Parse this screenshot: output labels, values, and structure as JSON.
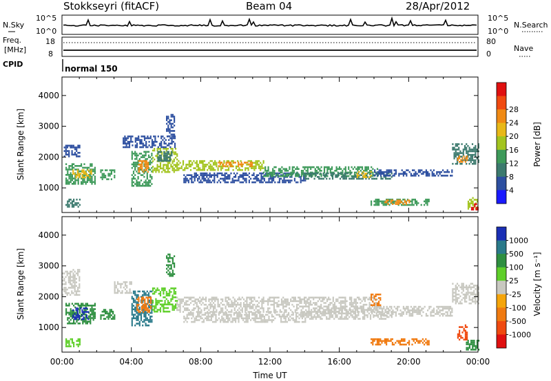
{
  "header": {
    "station": "Stokkseyri (fitACF)",
    "beam": "Beam 04",
    "date": "28/Apr/2012"
  },
  "panels": {
    "nsky": {
      "left_label": "N.Sky",
      "right_label": "N.Search",
      "left_ticks": [
        "10^5",
        "10^0"
      ],
      "right_ticks": [
        "10^5",
        "10^0"
      ]
    },
    "freq": {
      "left_label_1": "Freq.",
      "left_label_2": "[MHz]",
      "right_label": "Nave",
      "left_ticks": [
        "18",
        "8"
      ],
      "right_ticks": [
        "80",
        "0"
      ]
    },
    "cpid": {
      "label": "CPID",
      "mode": "normal 150"
    }
  },
  "chart_data": [
    {
      "type": "heatmap",
      "name": "power",
      "ylabel": "Slant Range [km]",
      "ylim": [
        200,
        4600
      ],
      "yticks": [
        "1000",
        "2000",
        "3000",
        "4000"
      ],
      "xlim": [
        0,
        24
      ],
      "colorbar": {
        "label": "Power [dB]",
        "ticks": [
          "4",
          "8",
          "12",
          "16",
          "20",
          "24",
          "28"
        ],
        "colors": [
          "#1a1aff",
          "#2d4fa0",
          "#3c7a6e",
          "#3e9a5a",
          "#a3c41f",
          "#e8b818",
          "#f08a14",
          "#f04a10",
          "#e01010"
        ]
      },
      "echo_regions": [
        {
          "t": [
            0.1,
            1.0
          ],
          "r": [
            2050,
            2400
          ],
          "level": 1
        },
        {
          "t": [
            0.2,
            1.9
          ],
          "r": [
            1150,
            1800
          ],
          "level": 3
        },
        {
          "t": [
            0.6,
            1.7
          ],
          "r": [
            1350,
            1600
          ],
          "level": 5
        },
        {
          "t": [
            2.2,
            3.0
          ],
          "r": [
            1300,
            1600
          ],
          "level": 3
        },
        {
          "t": [
            4.0,
            5.2
          ],
          "r": [
            1050,
            2200
          ],
          "level": 3
        },
        {
          "t": [
            4.4,
            5.0
          ],
          "r": [
            1500,
            1900
          ],
          "level": 6
        },
        {
          "t": [
            5.2,
            6.6
          ],
          "r": [
            1500,
            2300
          ],
          "level": 4
        },
        {
          "t": [
            5.5,
            6.3
          ],
          "r": [
            1900,
            2200
          ],
          "level": 2
        },
        {
          "t": [
            6.6,
            11.6
          ],
          "r": [
            1600,
            1900
          ],
          "level": 4
        },
        {
          "t": [
            9.0,
            11.0
          ],
          "r": [
            1700,
            1850
          ],
          "level": 6
        },
        {
          "t": [
            7.0,
            14.0
          ],
          "r": [
            1200,
            1500
          ],
          "level": 1
        },
        {
          "t": [
            11.6,
            18.2
          ],
          "r": [
            1400,
            1700
          ],
          "level": 3
        },
        {
          "t": [
            14.0,
            19.0
          ],
          "r": [
            1300,
            1500
          ],
          "level": 2
        },
        {
          "t": [
            17.0,
            17.8
          ],
          "r": [
            1350,
            1550
          ],
          "level": 5
        },
        {
          "t": [
            18.0,
            22.5
          ],
          "r": [
            1400,
            1600
          ],
          "level": 1
        },
        {
          "t": [
            17.8,
            21.2
          ],
          "r": [
            450,
            650
          ],
          "level": 3
        },
        {
          "t": [
            18.6,
            20.0
          ],
          "r": [
            480,
            620
          ],
          "level": 6
        },
        {
          "t": [
            22.5,
            24.0
          ],
          "r": [
            1800,
            2450
          ],
          "level": 2
        },
        {
          "t": [
            22.8,
            23.4
          ],
          "r": [
            1850,
            2050
          ],
          "level": 6
        },
        {
          "t": [
            23.4,
            24.0
          ],
          "r": [
            300,
            700
          ],
          "level": 4
        },
        {
          "t": [
            23.6,
            23.95
          ],
          "r": [
            300,
            500
          ],
          "level": 8
        },
        {
          "t": [
            0.2,
            1.0
          ],
          "r": [
            400,
            650
          ],
          "level": 2
        },
        {
          "t": [
            3.5,
            6.5
          ],
          "r": [
            2300,
            2700
          ],
          "level": 1
        },
        {
          "t": [
            6.0,
            6.5
          ],
          "r": [
            2700,
            3400
          ],
          "level": 1
        }
      ]
    },
    {
      "type": "heatmap",
      "name": "velocity",
      "ylabel": "Slant Range [km]",
      "ylim": [
        200,
        4600
      ],
      "yticks": [
        "1000",
        "2000",
        "3000",
        "4000"
      ],
      "xlim": [
        0,
        24
      ],
      "xticks": [
        "00:00",
        "04:00",
        "08:00",
        "12:00",
        "16:00",
        "20:00",
        "00:00"
      ],
      "xlabel": "Time UT",
      "colorbar": {
        "label": "Velocity [m s⁻¹]",
        "ticks": [
          "1000",
          "500",
          "100",
          "25",
          "-25",
          "-100",
          "-500",
          "-1000"
        ],
        "colors": [
          "#1a2fb5",
          "#2a7a8a",
          "#2e8f40",
          "#5fcf2a",
          "#c8c8c0",
          "#f5a50a",
          "#f07a10",
          "#f04a10",
          "#e01010"
        ]
      },
      "echo_regions": [
        {
          "t": [
            0.0,
            1.0
          ],
          "r": [
            2050,
            2900
          ],
          "level": 4
        },
        {
          "t": [
            0.2,
            1.9
          ],
          "r": [
            1150,
            1800
          ],
          "level": 2
        },
        {
          "t": [
            0.6,
            1.5
          ],
          "r": [
            1300,
            1650
          ],
          "level": 0
        },
        {
          "t": [
            2.2,
            3.0
          ],
          "r": [
            1300,
            1600
          ],
          "level": 2
        },
        {
          "t": [
            4.0,
            5.2
          ],
          "r": [
            1050,
            2200
          ],
          "level": 1
        },
        {
          "t": [
            4.3,
            5.1
          ],
          "r": [
            1500,
            2000
          ],
          "level": 6
        },
        {
          "t": [
            5.2,
            6.6
          ],
          "r": [
            1500,
            2300
          ],
          "level": 3
        },
        {
          "t": [
            3.0,
            4.0
          ],
          "r": [
            2100,
            2500
          ],
          "level": 4
        },
        {
          "t": [
            6.6,
            18.2
          ],
          "r": [
            1500,
            2000
          ],
          "level": 4
        },
        {
          "t": [
            7.0,
            14.0
          ],
          "r": [
            1200,
            1500
          ],
          "level": 4
        },
        {
          "t": [
            14.0,
            19.0
          ],
          "r": [
            1300,
            1600
          ],
          "level": 4
        },
        {
          "t": [
            18.0,
            22.5
          ],
          "r": [
            1400,
            1700
          ],
          "level": 4
        },
        {
          "t": [
            22.5,
            24.0
          ],
          "r": [
            1800,
            2450
          ],
          "level": 4
        },
        {
          "t": [
            17.8,
            21.2
          ],
          "r": [
            420,
            650
          ],
          "level": 6
        },
        {
          "t": [
            17.8,
            18.4
          ],
          "r": [
            1700,
            2100
          ],
          "level": 6
        },
        {
          "t": [
            22.8,
            23.4
          ],
          "r": [
            600,
            1100
          ],
          "level": 7
        },
        {
          "t": [
            23.3,
            24.0
          ],
          "r": [
            300,
            600
          ],
          "level": 2
        },
        {
          "t": [
            0.2,
            1.0
          ],
          "r": [
            400,
            650
          ],
          "level": 3
        },
        {
          "t": [
            6.0,
            6.5
          ],
          "r": [
            2700,
            3400
          ],
          "level": 2
        }
      ]
    }
  ]
}
